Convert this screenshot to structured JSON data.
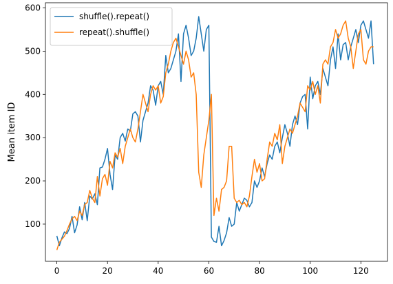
{
  "chart_data": {
    "type": "line",
    "title": "",
    "xlabel": "",
    "ylabel": "Mean item ID",
    "xlim": [
      -4.5,
      130.5
    ],
    "ylim": [
      14,
      612
    ],
    "xticks": [
      0,
      20,
      40,
      60,
      80,
      100,
      120
    ],
    "yticks": [
      100,
      200,
      300,
      400,
      500,
      600
    ],
    "grid": false,
    "legend_position": "upper-left",
    "series": [
      {
        "name": "shuffle().repeat()",
        "color": "#1f77b4",
        "x": [
          0,
          1,
          2,
          3,
          4,
          5,
          6,
          7,
          8,
          9,
          10,
          11,
          12,
          13,
          14,
          15,
          16,
          17,
          18,
          19,
          20,
          21,
          22,
          23,
          24,
          25,
          26,
          27,
          28,
          29,
          30,
          31,
          32,
          33,
          34,
          35,
          36,
          37,
          38,
          39,
          40,
          41,
          42,
          43,
          44,
          45,
          46,
          47,
          48,
          49,
          50,
          51,
          52,
          53,
          54,
          55,
          56,
          57,
          58,
          59,
          60,
          61,
          62,
          63,
          64,
          65,
          66,
          67,
          68,
          69,
          70,
          71,
          72,
          73,
          74,
          75,
          76,
          77,
          78,
          79,
          80,
          81,
          82,
          83,
          84,
          85,
          86,
          87,
          88,
          89,
          90,
          91,
          92,
          93,
          94,
          95,
          96,
          97,
          98,
          99,
          100,
          101,
          102,
          103,
          104,
          105,
          106,
          107,
          108,
          109,
          110,
          111,
          112,
          113,
          114,
          115,
          116,
          117,
          118,
          119,
          120,
          121,
          122,
          123,
          124,
          125
        ],
        "values": [
          73,
          50,
          68,
          82,
          78,
          90,
          118,
          80,
          98,
          140,
          110,
          150,
          108,
          165,
          158,
          170,
          145,
          230,
          232,
          250,
          275,
          215,
          180,
          260,
          250,
          300,
          310,
          292,
          320,
          315,
          355,
          360,
          350,
          290,
          340,
          360,
          380,
          420,
          410,
          375,
          420,
          430,
          400,
          490,
          450,
          460,
          480,
          500,
          540,
          430,
          540,
          560,
          530,
          490,
          500,
          530,
          580,
          540,
          500,
          550,
          560,
          70,
          60,
          58,
          95,
          50,
          62,
          80,
          115,
          95,
          100,
          150,
          130,
          145,
          160,
          155,
          140,
          150,
          200,
          185,
          200,
          230,
          210,
          240,
          260,
          250,
          280,
          290,
          265,
          300,
          330,
          310,
          280,
          330,
          350,
          330,
          380,
          395,
          400,
          320,
          440,
          390,
          420,
          430,
          400,
          460,
          440,
          420,
          480,
          510,
          460,
          540,
          480,
          515,
          520,
          480,
          510,
          530,
          550,
          520,
          560,
          570,
          550,
          530,
          570,
          470
        ]
      },
      {
        "name": "repeat().shuffle()",
        "color": "#ff7f0e",
        "x": [
          0,
          1,
          2,
          3,
          4,
          5,
          6,
          7,
          8,
          9,
          10,
          11,
          12,
          13,
          14,
          15,
          16,
          17,
          18,
          19,
          20,
          21,
          22,
          23,
          24,
          25,
          26,
          27,
          28,
          29,
          30,
          31,
          32,
          33,
          34,
          35,
          36,
          37,
          38,
          39,
          40,
          41,
          42,
          43,
          44,
          45,
          46,
          47,
          48,
          49,
          50,
          51,
          52,
          53,
          54,
          55,
          56,
          57,
          58,
          59,
          60,
          61,
          62,
          63,
          64,
          65,
          66,
          67,
          68,
          69,
          70,
          71,
          72,
          73,
          74,
          75,
          76,
          77,
          78,
          79,
          80,
          81,
          82,
          83,
          84,
          85,
          86,
          87,
          88,
          89,
          90,
          91,
          92,
          93,
          94,
          95,
          96,
          97,
          98,
          99,
          100,
          101,
          102,
          103,
          104,
          105,
          106,
          107,
          108,
          109,
          110,
          111,
          112,
          113,
          114,
          115,
          116,
          117,
          118,
          119,
          120,
          121,
          122,
          123,
          124,
          125
        ],
        "values": [
          40,
          58,
          65,
          72,
          85,
          100,
          112,
          118,
          108,
          130,
          120,
          145,
          150,
          178,
          160,
          150,
          210,
          165,
          205,
          215,
          190,
          245,
          230,
          265,
          255,
          275,
          240,
          280,
          300,
          320,
          300,
          290,
          320,
          360,
          400,
          380,
          360,
          400,
          420,
          410,
          420,
          380,
          395,
          450,
          470,
          500,
          520,
          530,
          510,
          490,
          470,
          500,
          480,
          440,
          450,
          400,
          220,
          185,
          260,
          300,
          340,
          400,
          120,
          160,
          130,
          180,
          185,
          200,
          280,
          280,
          160,
          150,
          155,
          145,
          150,
          140,
          165,
          210,
          250,
          220,
          240,
          200,
          205,
          250,
          290,
          280,
          310,
          295,
          330,
          240,
          280,
          300,
          320,
          310,
          330,
          350,
          380,
          370,
          360,
          420,
          410,
          430,
          400,
          420,
          380,
          470,
          480,
          470,
          510,
          520,
          550,
          530,
          540,
          560,
          570,
          530,
          510,
          460,
          500,
          540,
          550,
          480,
          470,
          500,
          510,
          510
        ]
      }
    ]
  }
}
